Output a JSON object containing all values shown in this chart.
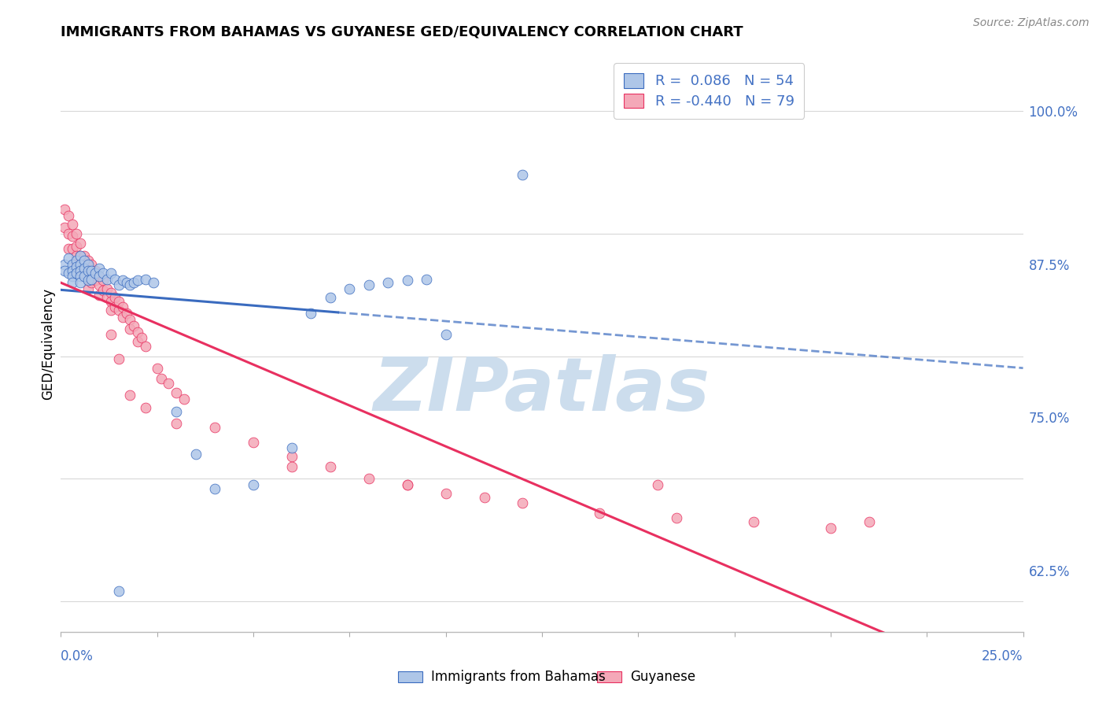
{
  "title": "IMMIGRANTS FROM BAHAMAS VS GUYANESE GED/EQUIVALENCY CORRELATION CHART",
  "source": "Source: ZipAtlas.com",
  "ylabel": "GED/Equivalency",
  "ytick_labels": [
    "62.5%",
    "75.0%",
    "87.5%",
    "100.0%"
  ],
  "ytick_values": [
    0.625,
    0.75,
    0.875,
    1.0
  ],
  "xlim": [
    0.0,
    0.25
  ],
  "ylim": [
    0.575,
    1.045
  ],
  "blue_color": "#aec6e8",
  "pink_color": "#f4a8b8",
  "line_blue_color": "#3a6bbf",
  "line_pink_color": "#e83060",
  "r_color": "#4472c4",
  "watermark_text": "ZIPatlas",
  "watermark_color": "#ccdded",
  "background_color": "#ffffff",
  "grid_color": "#d8d8d8",
  "legend_label1": "R =  0.086   N = 54",
  "legend_label2": "R = -0.440   N = 79",
  "bottom_label1": "Immigrants from Bahamas",
  "bottom_label2": "Guyanese",
  "bahamas_x": [
    0.001,
    0.001,
    0.002,
    0.002,
    0.003,
    0.003,
    0.003,
    0.003,
    0.004,
    0.004,
    0.004,
    0.005,
    0.005,
    0.005,
    0.005,
    0.005,
    0.006,
    0.006,
    0.006,
    0.007,
    0.007,
    0.007,
    0.008,
    0.008,
    0.009,
    0.01,
    0.01,
    0.011,
    0.012,
    0.013,
    0.014,
    0.015,
    0.016,
    0.017,
    0.018,
    0.019,
    0.02,
    0.022,
    0.024,
    0.03,
    0.035,
    0.04,
    0.05,
    0.06,
    0.065,
    0.07,
    0.075,
    0.08,
    0.085,
    0.09,
    0.095,
    0.1,
    0.12,
    0.015
  ],
  "bahamas_y": [
    0.875,
    0.87,
    0.88,
    0.868,
    0.875,
    0.87,
    0.865,
    0.86,
    0.878,
    0.873,
    0.868,
    0.882,
    0.875,
    0.87,
    0.865,
    0.86,
    0.878,
    0.872,
    0.865,
    0.875,
    0.87,
    0.862,
    0.87,
    0.863,
    0.868,
    0.872,
    0.865,
    0.868,
    0.863,
    0.868,
    0.863,
    0.858,
    0.862,
    0.86,
    0.858,
    0.86,
    0.862,
    0.863,
    0.86,
    0.755,
    0.72,
    0.692,
    0.695,
    0.725,
    0.835,
    0.848,
    0.855,
    0.858,
    0.86,
    0.862,
    0.863,
    0.818,
    0.948,
    0.608
  ],
  "guyanese_x": [
    0.001,
    0.001,
    0.002,
    0.002,
    0.002,
    0.003,
    0.003,
    0.003,
    0.004,
    0.004,
    0.004,
    0.004,
    0.005,
    0.005,
    0.005,
    0.005,
    0.006,
    0.006,
    0.006,
    0.007,
    0.007,
    0.007,
    0.007,
    0.008,
    0.008,
    0.008,
    0.009,
    0.009,
    0.01,
    0.01,
    0.01,
    0.011,
    0.011,
    0.012,
    0.012,
    0.013,
    0.013,
    0.013,
    0.014,
    0.014,
    0.015,
    0.015,
    0.016,
    0.016,
    0.017,
    0.018,
    0.018,
    0.019,
    0.02,
    0.02,
    0.021,
    0.022,
    0.025,
    0.026,
    0.028,
    0.03,
    0.032,
    0.04,
    0.05,
    0.06,
    0.07,
    0.08,
    0.09,
    0.1,
    0.11,
    0.12,
    0.14,
    0.16,
    0.18,
    0.2,
    0.013,
    0.015,
    0.018,
    0.022,
    0.03,
    0.06,
    0.09,
    0.155,
    0.21
  ],
  "guyanese_y": [
    0.92,
    0.905,
    0.915,
    0.9,
    0.888,
    0.908,
    0.898,
    0.888,
    0.9,
    0.89,
    0.882,
    0.875,
    0.892,
    0.882,
    0.875,
    0.868,
    0.882,
    0.875,
    0.865,
    0.878,
    0.87,
    0.862,
    0.855,
    0.875,
    0.868,
    0.86,
    0.87,
    0.862,
    0.865,
    0.858,
    0.85,
    0.862,
    0.854,
    0.855,
    0.848,
    0.852,
    0.845,
    0.838,
    0.848,
    0.84,
    0.845,
    0.838,
    0.84,
    0.832,
    0.835,
    0.83,
    0.822,
    0.825,
    0.82,
    0.812,
    0.815,
    0.808,
    0.79,
    0.782,
    0.778,
    0.77,
    0.765,
    0.742,
    0.73,
    0.718,
    0.71,
    0.7,
    0.695,
    0.688,
    0.685,
    0.68,
    0.672,
    0.668,
    0.665,
    0.66,
    0.818,
    0.798,
    0.768,
    0.758,
    0.745,
    0.71,
    0.695,
    0.695,
    0.665
  ]
}
